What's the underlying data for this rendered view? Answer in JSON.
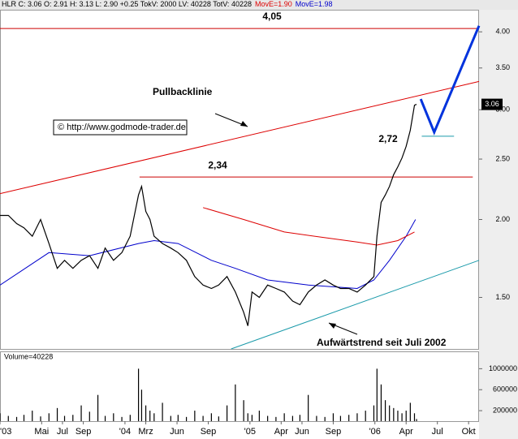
{
  "chart_data": {
    "type": "line",
    "log_scale": true,
    "header": [
      {
        "text": "HLR C: 3.06 O: 2.91 H: 3.13 L: 2.90 +0.25 TokV: 2000 LV: 40228 TotV: 40228",
        "color": "#000000"
      },
      {
        "text": "MovE=1.90",
        "color": "#dd0000"
      },
      {
        "text": "MovE=1.98",
        "color": "#0000cc"
      }
    ],
    "annotations": [
      "Pullbacklinie",
      "© http://www.godmode-trader.de",
      "Aufwärtstrend seit Juli 2002"
    ],
    "last_price": 3.06,
    "xlim": [
      0,
      46
    ],
    "xticks": [
      {
        "value": 0,
        "label": "'03"
      },
      {
        "value": 4,
        "label": "Mai"
      },
      {
        "value": 6,
        "label": "Jul"
      },
      {
        "value": 8,
        "label": "Sep"
      },
      {
        "value": 12,
        "label": "'04"
      },
      {
        "value": 14,
        "label": "Mrz"
      },
      {
        "value": 17,
        "label": "Jun"
      },
      {
        "value": 20,
        "label": "Sep"
      },
      {
        "value": 24,
        "label": "'05"
      },
      {
        "value": 27,
        "label": "Apr"
      },
      {
        "value": 29,
        "label": "Jun"
      },
      {
        "value": 32,
        "label": "Sep"
      },
      {
        "value": 36,
        "label": "'06"
      },
      {
        "value": 39,
        "label": "Apr"
      },
      {
        "value": 42,
        "label": "Jul"
      },
      {
        "value": 45,
        "label": "Okt"
      }
    ],
    "ylim": [
      1.24,
      4.34
    ],
    "yticks": [
      {
        "value": 1.5,
        "label": "1.50"
      },
      {
        "value": 2,
        "label": "2.00"
      },
      {
        "value": 2.5,
        "label": "2.50"
      },
      {
        "value": 3,
        "label": "3.00"
      },
      {
        "value": 3.5,
        "label": "3.50"
      },
      {
        "value": 4,
        "label": "4.00"
      }
    ],
    "x": [
      0,
      0.8,
      1.6,
      2.3,
      3.1,
      3.9,
      4.7,
      5.5,
      6.2,
      7.0,
      7.8,
      8.6,
      9.4,
      10.1,
      10.9,
      11.7,
      12.5,
      13.3,
      13.6,
      14.0,
      14.4,
      14.8,
      15.6,
      16.4,
      17.1,
      17.9,
      18.7,
      19.5,
      20.3,
      21.0,
      21.8,
      22.6,
      23.4,
      23.8,
      24.2,
      24.9,
      25.7,
      26.5,
      27.3,
      28.1,
      28.8,
      29.6,
      30.4,
      31.2,
      32.0,
      32.7,
      33.5,
      34.3,
      35.1,
      35.9,
      36.2,
      36.6,
      37.0,
      37.4,
      37.8,
      38.2,
      38.6,
      39.0,
      39.4,
      39.8,
      40.0
    ],
    "color": "#000000",
    "values": [
      2.03,
      2.03,
      1.97,
      1.94,
      1.88,
      2.0,
      1.83,
      1.67,
      1.72,
      1.67,
      1.72,
      1.75,
      1.67,
      1.8,
      1.72,
      1.77,
      1.88,
      2.19,
      2.26,
      2.06,
      2.0,
      1.88,
      1.83,
      1.8,
      1.77,
      1.72,
      1.62,
      1.57,
      1.55,
      1.57,
      1.62,
      1.53,
      1.42,
      1.35,
      1.53,
      1.5,
      1.57,
      1.55,
      1.53,
      1.48,
      1.46,
      1.53,
      1.57,
      1.6,
      1.57,
      1.55,
      1.55,
      1.53,
      1.57,
      1.62,
      1.88,
      2.13,
      2.19,
      2.26,
      2.36,
      2.43,
      2.51,
      2.62,
      2.78,
      3.05,
      3.06
    ],
    "lines": [
      {
        "color": "#0000cc",
        "x": [
          0,
          4.7,
          8.6,
          13.3,
          14.8,
          17.1,
          20.3,
          22.6,
          25.7,
          29.6,
          34.3,
          35.9,
          37.4,
          39.0,
          39.9
        ],
        "values": [
          1.57,
          1.77,
          1.75,
          1.83,
          1.85,
          1.83,
          1.72,
          1.67,
          1.6,
          1.57,
          1.55,
          1.6,
          1.72,
          1.88,
          2.0
        ]
      },
      {
        "color": "#dd0000",
        "x": [
          19.5,
          23.4,
          27.3,
          31.2,
          34.3,
          36.2,
          38.2,
          39.8
        ],
        "values": [
          2.09,
          2.0,
          1.91,
          1.87,
          1.84,
          1.82,
          1.85,
          1.91
        ]
      },
      {
        "color": "#dd0000",
        "x": [
          0,
          46
        ],
        "values": [
          2.2,
          3.33
        ]
      },
      {
        "color": "#1a9aaa",
        "x": [
          22.2,
          46
        ],
        "values": [
          1.24,
          1.72
        ]
      },
      {
        "color": "#0033dd",
        "x": [
          40.4,
          41.7,
          46
        ],
        "values": [
          3.12,
          2.76,
          4.09
        ]
      }
    ],
    "levels": [
      {
        "value": 4.05,
        "label": "4,05",
        "color": "#cc0000",
        "x": [
          0,
          46
        ]
      },
      {
        "value": 2.34,
        "label": "2,34",
        "color": "#cc0000",
        "x": [
          13.4,
          45.4
        ]
      },
      {
        "value": 2.72,
        "label": "2,72",
        "color": "#1a9aaa",
        "x": [
          40.5,
          43.6
        ]
      }
    ],
    "volume": {
      "title": "Volume=40228",
      "color": "#000000",
      "ylim": [
        0,
        1300000
      ],
      "yticks": [
        200000,
        600000,
        1000000
      ],
      "values": [
        150000,
        100000,
        80000,
        120000,
        200000,
        90000,
        150000,
        250000,
        100000,
        120000,
        300000,
        180000,
        500000,
        100000,
        150000,
        80000,
        120000,
        1000000,
        600000,
        300000,
        200000,
        150000,
        350000,
        100000,
        120000,
        80000,
        200000,
        100000,
        150000,
        90000,
        300000,
        700000,
        400000,
        150000,
        120000,
        200000,
        100000,
        80000,
        150000,
        100000,
        120000,
        500000,
        100000,
        80000,
        150000,
        100000,
        120000,
        150000,
        200000,
        300000,
        1000000,
        700000,
        400000,
        300000,
        250000,
        200000,
        150000,
        200000,
        350000,
        150000,
        40000
      ]
    }
  }
}
